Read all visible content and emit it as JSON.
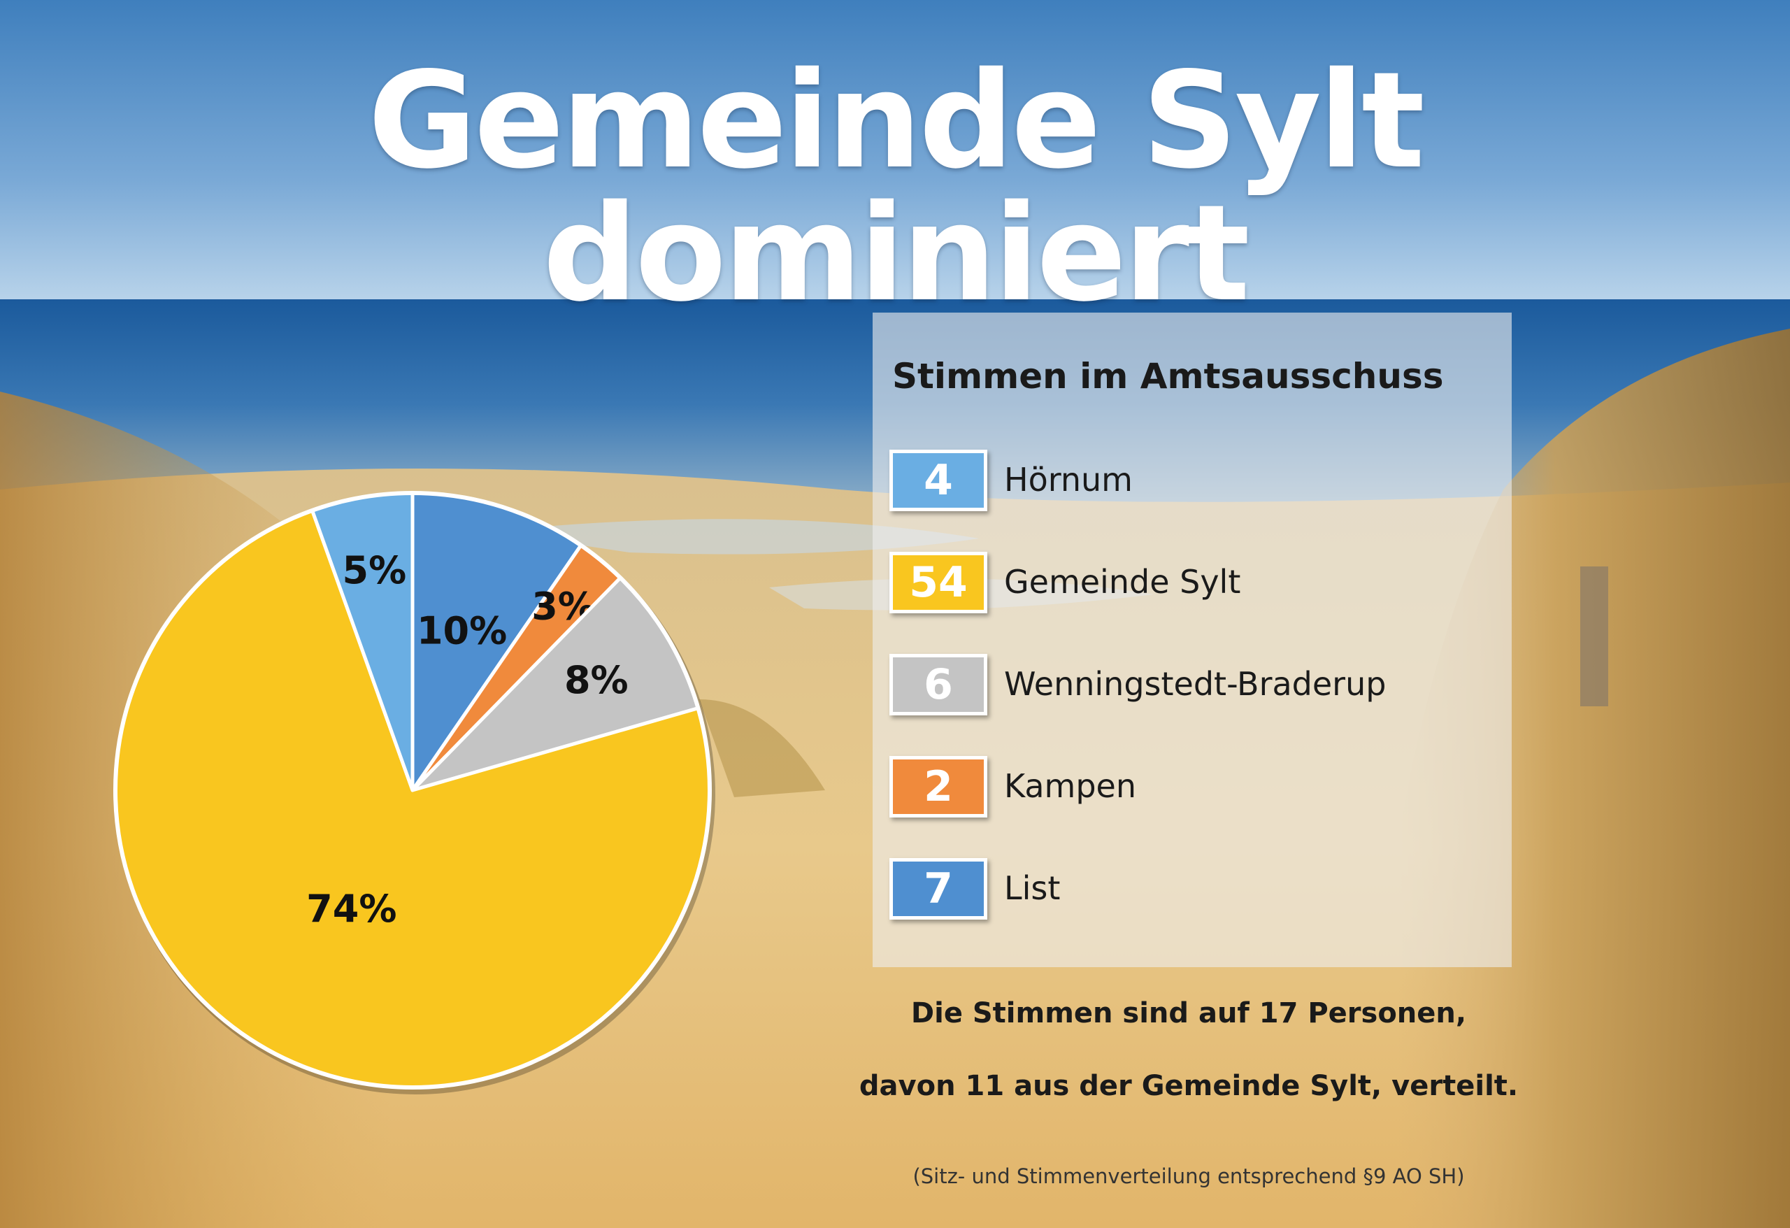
{
  "title": "Gemeinde Sylt dominiert",
  "chart_data": {
    "type": "pie",
    "title": "Stimmen im Amtsausschuss",
    "slices": [
      {
        "name": "List",
        "value": 7,
        "label": "10%",
        "color": "#4f8fd0"
      },
      {
        "name": "Kampen",
        "value": 2,
        "label": "3%",
        "color": "#f08a3c"
      },
      {
        "name": "Wenningstedt-Braderup",
        "value": 6,
        "label": "8%",
        "color": "#c4c4c4"
      },
      {
        "name": "Gemeinde Sylt",
        "value": 54,
        "label": "74%",
        "color": "#f9c61f"
      },
      {
        "name": "Hörnum",
        "value": 4,
        "label": "5%",
        "color": "#6aaee3"
      }
    ]
  },
  "legend": {
    "title": "Stimmen im Amtsausschuss",
    "items": [
      {
        "value": "4",
        "name": "Hörnum",
        "color": "#6aaee3"
      },
      {
        "value": "54",
        "name": "Gemeinde Sylt",
        "color": "#f9c61f"
      },
      {
        "value": "6",
        "name": "Wenningstedt-Braderup",
        "color": "#c4c4c4"
      },
      {
        "value": "2",
        "name": "Kampen",
        "color": "#f08a3c"
      },
      {
        "value": "7",
        "name": "List",
        "color": "#4f8fd0"
      }
    ]
  },
  "note": {
    "line1": "Die Stimmen sind auf 17 Personen,",
    "line2": "davon 11 aus der Gemeinde Sylt, verteilt."
  },
  "source": "(Sitz- und Stimmenverteilung entsprechend §9 AO SH)"
}
